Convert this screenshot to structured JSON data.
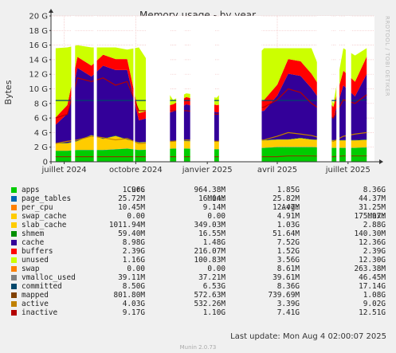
{
  "chart_data": {
    "type": "area",
    "title": "Memory usage - by year",
    "ylabel": "Bytes",
    "side_label": "RRDTOOL / TOBI OETIKER",
    "ylim": [
      0,
      20
    ],
    "y_unit": "G",
    "yticks": [
      0,
      2,
      4,
      6,
      8,
      10,
      12,
      14,
      16,
      18,
      20
    ],
    "ytick_labels": [
      "0",
      "2 G",
      "4 G",
      "6 G",
      "8 G",
      "10 G",
      "12 G",
      "14 G",
      "16 G",
      "18 G",
      "20 G"
    ],
    "xlim": [
      "2024-06-14",
      "2025-08-04"
    ],
    "xticks": [
      "2024-07-01",
      "2024-10-01",
      "2025-01-01",
      "2025-04-01",
      "2025-07-01"
    ],
    "xtick_labels": [
      "juillet 2024",
      "octobre 2024",
      "janvier 2025",
      "avril 2025",
      "juillet 2025"
    ],
    "grid": true,
    "x": [
      "2024-06-20",
      "2024-07-05",
      "2024-07-18",
      "2024-08-05",
      "2024-08-20",
      "2024-09-05",
      "2024-09-20",
      "2024-10-05",
      "2024-11-18",
      "2024-12-05",
      "2025-01-13",
      "2025-03-15",
      "2025-04-01",
      "2025-04-15",
      "2025-05-01",
      "2025-05-15",
      "2025-06-12",
      "2025-06-25",
      "2025-07-10",
      "2025-07-25"
    ],
    "series": [
      {
        "name": "apps",
        "values": [
          1.5,
          1.5,
          1.6,
          1.6,
          1.6,
          1.7,
          1.8,
          1.6,
          1.8,
          1.8,
          1.7,
          1.9,
          2.0,
          2.0,
          2.0,
          2.0,
          1.9,
          1.9,
          1.9,
          1.96
        ]
      },
      {
        "name": "page_tables",
        "values": [
          0.02,
          0.02,
          0.02,
          0.02,
          0.02,
          0.02,
          0.02,
          0.02,
          0.02,
          0.02,
          0.02,
          0.02,
          0.02,
          0.02,
          0.02,
          0.02,
          0.02,
          0.02,
          0.02,
          0.026
        ]
      },
      {
        "name": "per_cpu",
        "values": [
          0.01,
          0.01,
          0.01,
          0.01,
          0.01,
          0.01,
          0.01,
          0.01,
          0.01,
          0.01,
          0.01,
          0.01,
          0.01,
          0.01,
          0.01,
          0.01,
          0.01,
          0.01,
          0.01,
          0.01
        ]
      },
      {
        "name": "slab_cache",
        "values": [
          1.0,
          1.0,
          1.2,
          2.0,
          1.5,
          1.8,
          1.2,
          1.0,
          1.0,
          1.0,
          1.0,
          1.0,
          1.0,
          1.0,
          1.2,
          1.0,
          1.0,
          1.0,
          1.0,
          1.0
        ]
      },
      {
        "name": "shmem",
        "values": [
          0.05,
          0.05,
          0.05,
          0.05,
          0.05,
          0.05,
          0.05,
          0.05,
          0.05,
          0.05,
          0.05,
          0.05,
          0.05,
          0.05,
          0.05,
          0.05,
          0.05,
          0.05,
          0.05,
          0.06
        ]
      },
      {
        "name": "cache",
        "values": [
          2.5,
          4.0,
          10.0,
          8.0,
          10.0,
          9.0,
          9.5,
          3.0,
          4.0,
          5.0,
          4.0,
          4.0,
          6.0,
          9.0,
          8.5,
          7.0,
          3.0,
          7.5,
          6.0,
          8.98
        ]
      },
      {
        "name": "buffers",
        "values": [
          1.0,
          1.2,
          1.5,
          1.5,
          1.5,
          1.5,
          1.5,
          1.0,
          1.0,
          1.0,
          1.0,
          1.5,
          1.5,
          2.0,
          2.0,
          2.0,
          1.5,
          2.0,
          2.0,
          2.39
        ]
      },
      {
        "name": "unused",
        "values": [
          9.5,
          7.9,
          1.6,
          2.5,
          1.0,
          1.6,
          1.3,
          9.0,
          0.6,
          0.5,
          1.0,
          7.1,
          5.0,
          1.5,
          1.8,
          3.5,
          0.5,
          3.1,
          3.6,
          1.16
        ]
      }
    ],
    "gaps": [
      [
        "2024-07-10",
        "2024-07-15"
      ],
      [
        "2024-08-08",
        "2024-08-12"
      ],
      [
        "2024-09-28",
        "2024-09-30"
      ],
      [
        "2024-10-14",
        "2024-11-14"
      ],
      [
        "2024-11-22",
        "2024-12-02"
      ],
      [
        "2024-12-10",
        "2025-01-10"
      ],
      [
        "2025-01-16",
        "2025-03-12"
      ],
      [
        "2025-05-22",
        "2025-06-10"
      ],
      [
        "2025-06-16",
        "2025-06-20"
      ],
      [
        "2025-06-28",
        "2025-07-05"
      ]
    ],
    "colors": {
      "apps": "#00cc00",
      "page_tables": "#0066b3",
      "per_cpu": "#ff8000",
      "swap_cache": "#ffcc00",
      "slab_cache": "#ffcc00",
      "shmem": "#008f00",
      "cache": "#330099",
      "buffers": "#ff0000",
      "unused": "#ccff00",
      "swap": "#ff8000",
      "vmalloc_used": "#808080",
      "committed": "#00476b",
      "mapped": "#804000",
      "active": "#c08000",
      "inactive": "#b30000"
    },
    "lines": [
      {
        "name": "committed",
        "values": [
          8.4,
          8.4,
          8.4,
          8.4,
          8.4,
          8.4,
          8.4,
          8.4,
          8.4,
          8.4,
          8.4,
          8.4,
          8.4,
          8.4,
          8.4,
          8.4,
          8.4,
          8.4,
          8.4,
          8.5
        ]
      },
      {
        "name": "mapped",
        "values": [
          0.7,
          0.7,
          0.7,
          0.7,
          0.7,
          0.7,
          0.7,
          0.7,
          0.7,
          0.7,
          0.7,
          0.7,
          0.7,
          0.8,
          0.8,
          0.8,
          0.7,
          0.8,
          0.8,
          0.8
        ]
      },
      {
        "name": "active",
        "values": [
          2.5,
          2.8,
          3.0,
          3.5,
          3.3,
          3.0,
          3.2,
          2.5,
          2.8,
          3.0,
          2.8,
          3.0,
          3.5,
          4.0,
          3.8,
          3.6,
          2.8,
          3.5,
          3.8,
          4.0
        ]
      },
      {
        "name": "inactive",
        "values": [
          6.0,
          6.5,
          11.5,
          11.0,
          11.5,
          10.5,
          11.0,
          7.0,
          7.0,
          7.0,
          6.5,
          7.5,
          8.5,
          10.0,
          9.5,
          8.0,
          6.0,
          8.5,
          8.0,
          9.2
        ]
      }
    ],
    "legend_headers": {
      "cur": "Cur:",
      "min": "Min:",
      "avg": "Avg:",
      "max": "Max:"
    },
    "legend": [
      {
        "name": "apps",
        "cur": "1.96G",
        "min": "964.38M",
        "avg": "1.85G",
        "max": "8.36G"
      },
      {
        "name": "page_tables",
        "cur": "25.72M",
        "min": "16.04M",
        "avg": "25.82M",
        "max": "44.37M"
      },
      {
        "name": "per_cpu",
        "cur": "10.45M",
        "min": "9.14M",
        "avg": "12.47M",
        "max": "31.25M"
      },
      {
        "name": "swap_cache",
        "cur": "0.00",
        "min": "0.00",
        "avg": "4.91M",
        "max": "175.97M"
      },
      {
        "name": "slab_cache",
        "cur": "1011.94M",
        "min": "349.03M",
        "avg": "1.03G",
        "max": "2.88G"
      },
      {
        "name": "shmem",
        "cur": "59.40M",
        "min": "16.55M",
        "avg": "51.64M",
        "max": "140.30M"
      },
      {
        "name": "cache",
        "cur": "8.98G",
        "min": "1.48G",
        "avg": "7.52G",
        "max": "12.36G"
      },
      {
        "name": "buffers",
        "cur": "2.39G",
        "min": "216.07M",
        "avg": "1.52G",
        "max": "2.39G"
      },
      {
        "name": "unused",
        "cur": "1.16G",
        "min": "100.83M",
        "avg": "3.56G",
        "max": "12.30G"
      },
      {
        "name": "swap",
        "cur": "0.00",
        "min": "0.00",
        "avg": "8.61M",
        "max": "263.38M"
      },
      {
        "name": "vmalloc_used",
        "cur": "39.11M",
        "min": "37.21M",
        "avg": "39.61M",
        "max": "46.45M"
      },
      {
        "name": "committed",
        "cur": "8.50G",
        "min": "6.53G",
        "avg": "8.36G",
        "max": "17.14G"
      },
      {
        "name": "mapped",
        "cur": "801.80M",
        "min": "572.63M",
        "avg": "739.69M",
        "max": "1.08G"
      },
      {
        "name": "active",
        "cur": "4.03G",
        "min": "532.26M",
        "avg": "3.39G",
        "max": "9.02G"
      },
      {
        "name": "inactive",
        "cur": "9.17G",
        "min": "1.10G",
        "avg": "7.41G",
        "max": "12.51G"
      }
    ]
  },
  "footer": {
    "last_update": "Last update: Mon Aug  4 02:00:07 2025",
    "munin": "Munin 2.0.73"
  }
}
